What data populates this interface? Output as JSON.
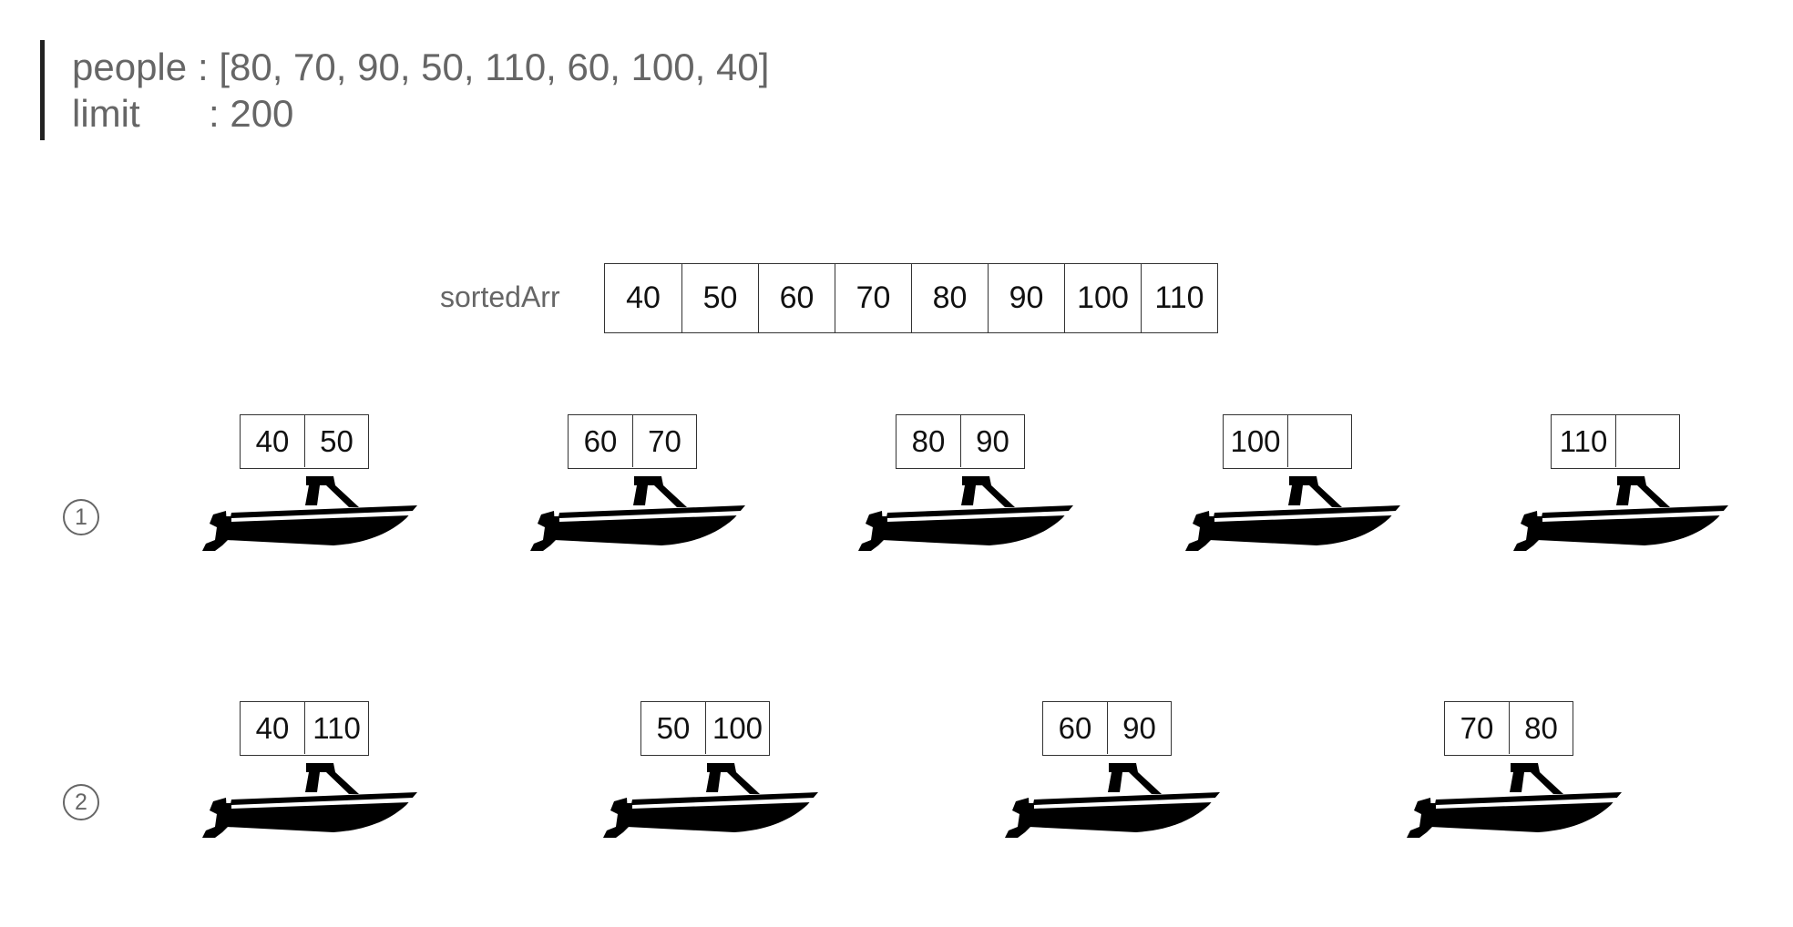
{
  "input": {
    "people_label": "people",
    "people_value": ": [80, 70, 90, 50, 110, 60, 100, 40]",
    "limit_label": "limit",
    "limit_value": ": 200"
  },
  "sorted": {
    "label": "sortedArr",
    "values": [
      "40",
      "50",
      "60",
      "70",
      "80",
      "90",
      "100",
      "110"
    ]
  },
  "steps": [
    {
      "marker": "1",
      "boats": [
        {
          "a": "40",
          "b": "50"
        },
        {
          "a": "60",
          "b": "70"
        },
        {
          "a": "80",
          "b": "90"
        },
        {
          "a": "100",
          "b": ""
        },
        {
          "a": "110",
          "b": ""
        }
      ]
    },
    {
      "marker": "2",
      "boats": [
        {
          "a": "40",
          "b": "110"
        },
        {
          "a": "50",
          "b": "100"
        },
        {
          "a": "60",
          "b": "90"
        },
        {
          "a": "70",
          "b": "80"
        }
      ]
    }
  ],
  "icons": {
    "boat": "motorboat-icon"
  }
}
